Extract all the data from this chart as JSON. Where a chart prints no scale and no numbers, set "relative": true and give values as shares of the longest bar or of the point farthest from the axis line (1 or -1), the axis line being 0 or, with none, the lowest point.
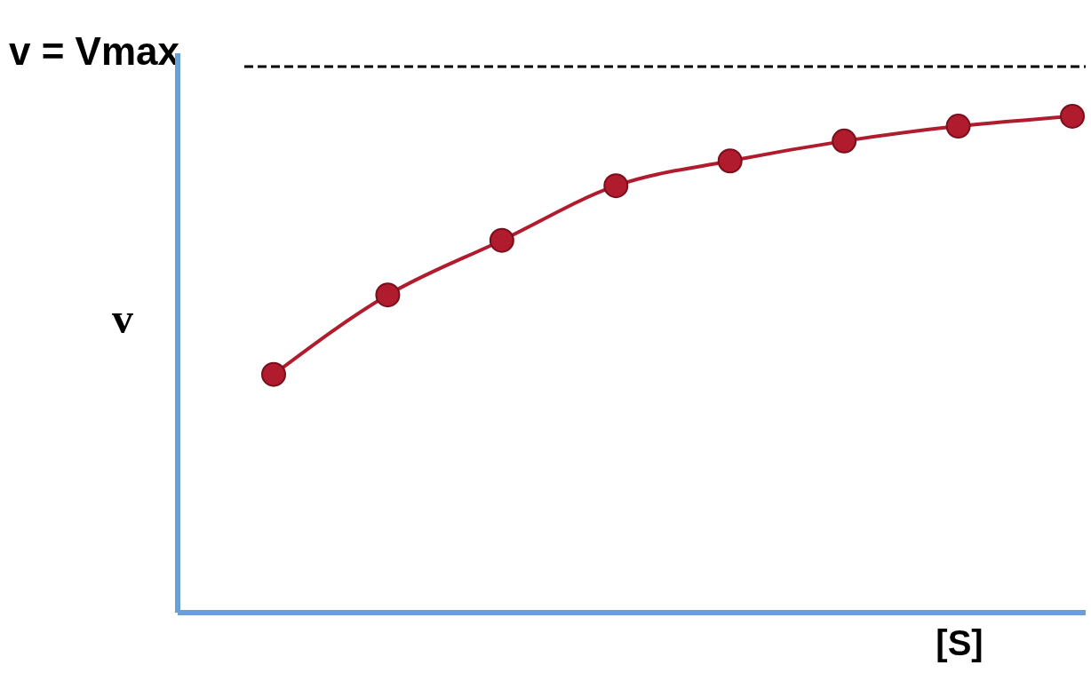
{
  "chart_data": {
    "type": "line",
    "xlabel": "[S]",
    "ylabel": "v",
    "relative": true,
    "marker": "circle",
    "line_style": "solid",
    "categories": [
      null,
      null,
      null,
      null,
      null,
      null,
      null,
      null
    ],
    "series": [
      {
        "color": "#b01c2e",
        "values": [
          0.48,
          0.64,
          0.75,
          0.86,
          0.91,
          0.95,
          0.98,
          1.0
        ]
      }
    ],
    "ref_lines": [
      {
        "axis": "y",
        "value": 1.1,
        "label": "v = Vmax",
        "color": "#000000",
        "line_style": "dashed"
      }
    ]
  }
}
